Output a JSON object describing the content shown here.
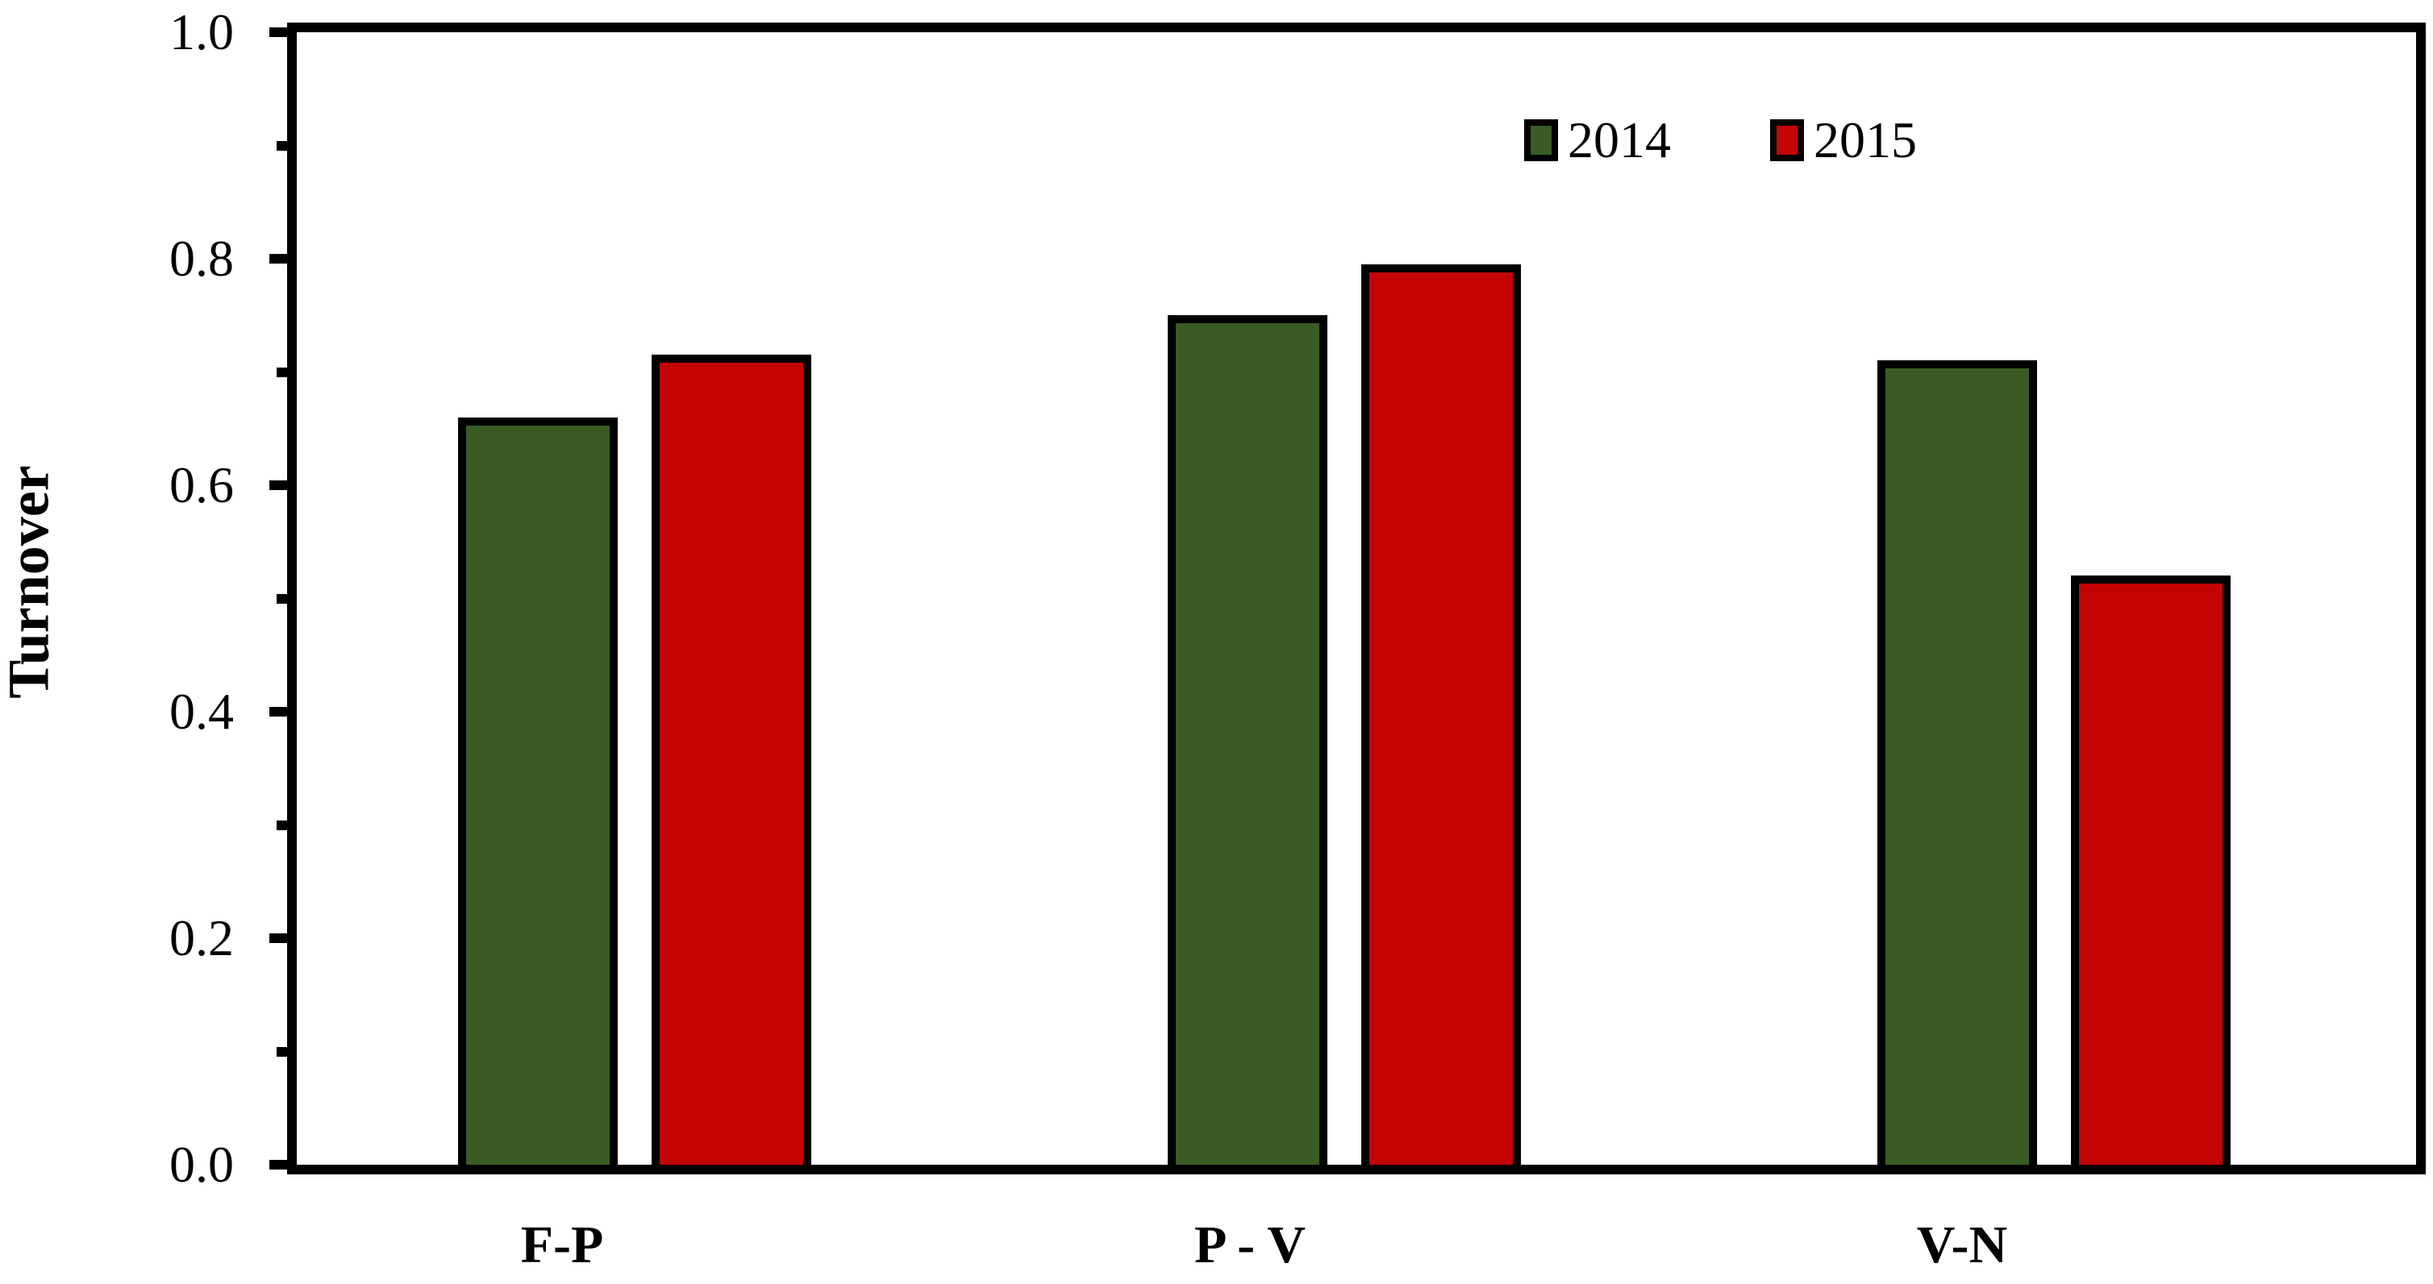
{
  "chart_data": {
    "type": "bar",
    "title": "",
    "xlabel": "",
    "ylabel": "Turnover",
    "categories": [
      "F-P",
      "P - V",
      "V-N"
    ],
    "series": [
      {
        "name": "2014",
        "color": "#3b5b24",
        "values": [
          0.66,
          0.75,
          0.71
        ]
      },
      {
        "name": "2015",
        "color": "#c40404",
        "values": [
          0.715,
          0.795,
          0.52
        ]
      }
    ],
    "ylim": [
      0.0,
      1.0
    ],
    "ytick_labels": [
      "0.0",
      "0.2",
      "0.4",
      "0.6",
      "0.8",
      "1.0"
    ],
    "ytick_values": [
      0.0,
      0.2,
      0.4,
      0.6,
      0.8,
      1.0
    ],
    "minor_tick_values": [
      0.1,
      0.3,
      0.5,
      0.7,
      0.9
    ],
    "grid": false,
    "legend_position": "top-right",
    "axis_color": "#000000",
    "bar_border_color": "#000000",
    "background": "#ffffff"
  }
}
